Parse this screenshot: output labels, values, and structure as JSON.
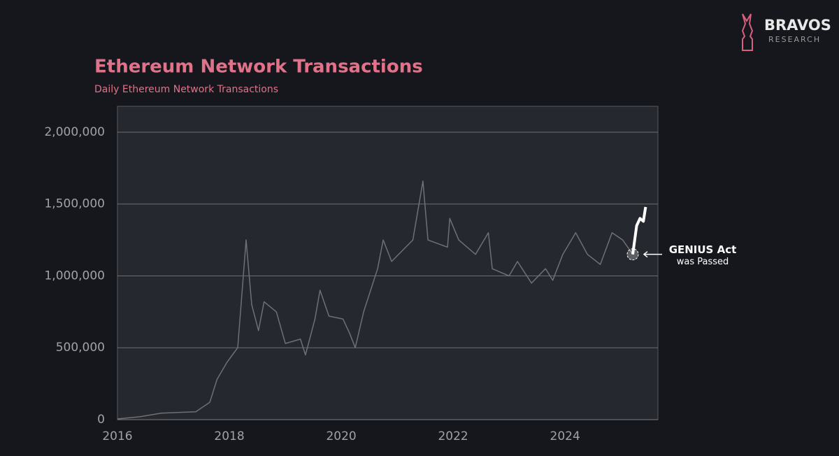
{
  "brand": {
    "name": "BRAVOS",
    "tagline": "RESEARCH"
  },
  "chart_data": {
    "type": "line",
    "title": "Ethereum Network Transactions",
    "subtitle": "Daily Ethereum Network Transactions",
    "xlim": [
      2016,
      2025.66
    ],
    "xticks": [
      2016,
      2018,
      2020,
      2022,
      2024
    ],
    "ylim": [
      0,
      2180000
    ],
    "yticks": [
      0,
      {
        "value": 500000,
        "label": "500,000"
      },
      {
        "value": 1000000,
        "label": "1,000,000"
      },
      {
        "value": 1500000,
        "label": "1,500,000"
      },
      {
        "value": 2000000,
        "label": "2,000,000"
      }
    ],
    "grid": true,
    "series": [
      {
        "color": "#6f7075",
        "x": [
          2016,
          2016.4,
          2016.78,
          2017.4,
          2017.65,
          2017.78,
          2017.96,
          2018.15,
          2018.25,
          2018.3,
          2018.4,
          2018.52,
          2018.62,
          2018.84,
          2019.0,
          2019.27,
          2019.36,
          2019.53,
          2019.62,
          2019.78,
          2020.03,
          2020.15,
          2020.25,
          2020.4,
          2020.65,
          2020.75,
          2020.9,
          2021.28,
          2021.46,
          2021.55,
          2021.9,
          2021.94,
          2022.1,
          2022.4,
          2022.63,
          2022.7,
          2023.0,
          2023.15,
          2023.4,
          2023.65,
          2023.78,
          2023.96,
          2024.19,
          2024.4,
          2024.63,
          2024.84,
          2025.03,
          2025.21
        ],
        "values": [
          5000,
          20000,
          45000,
          55000,
          120000,
          280000,
          400000,
          500000,
          1000000,
          1250000,
          800000,
          620000,
          820000,
          750000,
          530000,
          560000,
          450000,
          700000,
          900000,
          720000,
          700000,
          600000,
          500000,
          750000,
          1050000,
          1250000,
          1100000,
          1250000,
          1660000,
          1250000,
          1200000,
          1400000,
          1250000,
          1150000,
          1300000,
          1050000,
          1000000,
          1100000,
          950000,
          1050000,
          970000,
          1150000,
          1300000,
          1150000,
          1080000,
          1300000,
          1250000,
          1150000
        ]
      },
      {
        "color": "#ffffff",
        "x": [
          2025.21,
          2025.28,
          2025.34,
          2025.4,
          2025.44
        ],
        "values": [
          1150000,
          1350000,
          1400000,
          1380000,
          1480000
        ]
      }
    ],
    "annotation": {
      "title": "GENIUS Act",
      "text": "was Passed",
      "x": 2025.21,
      "y": 1150000
    }
  }
}
